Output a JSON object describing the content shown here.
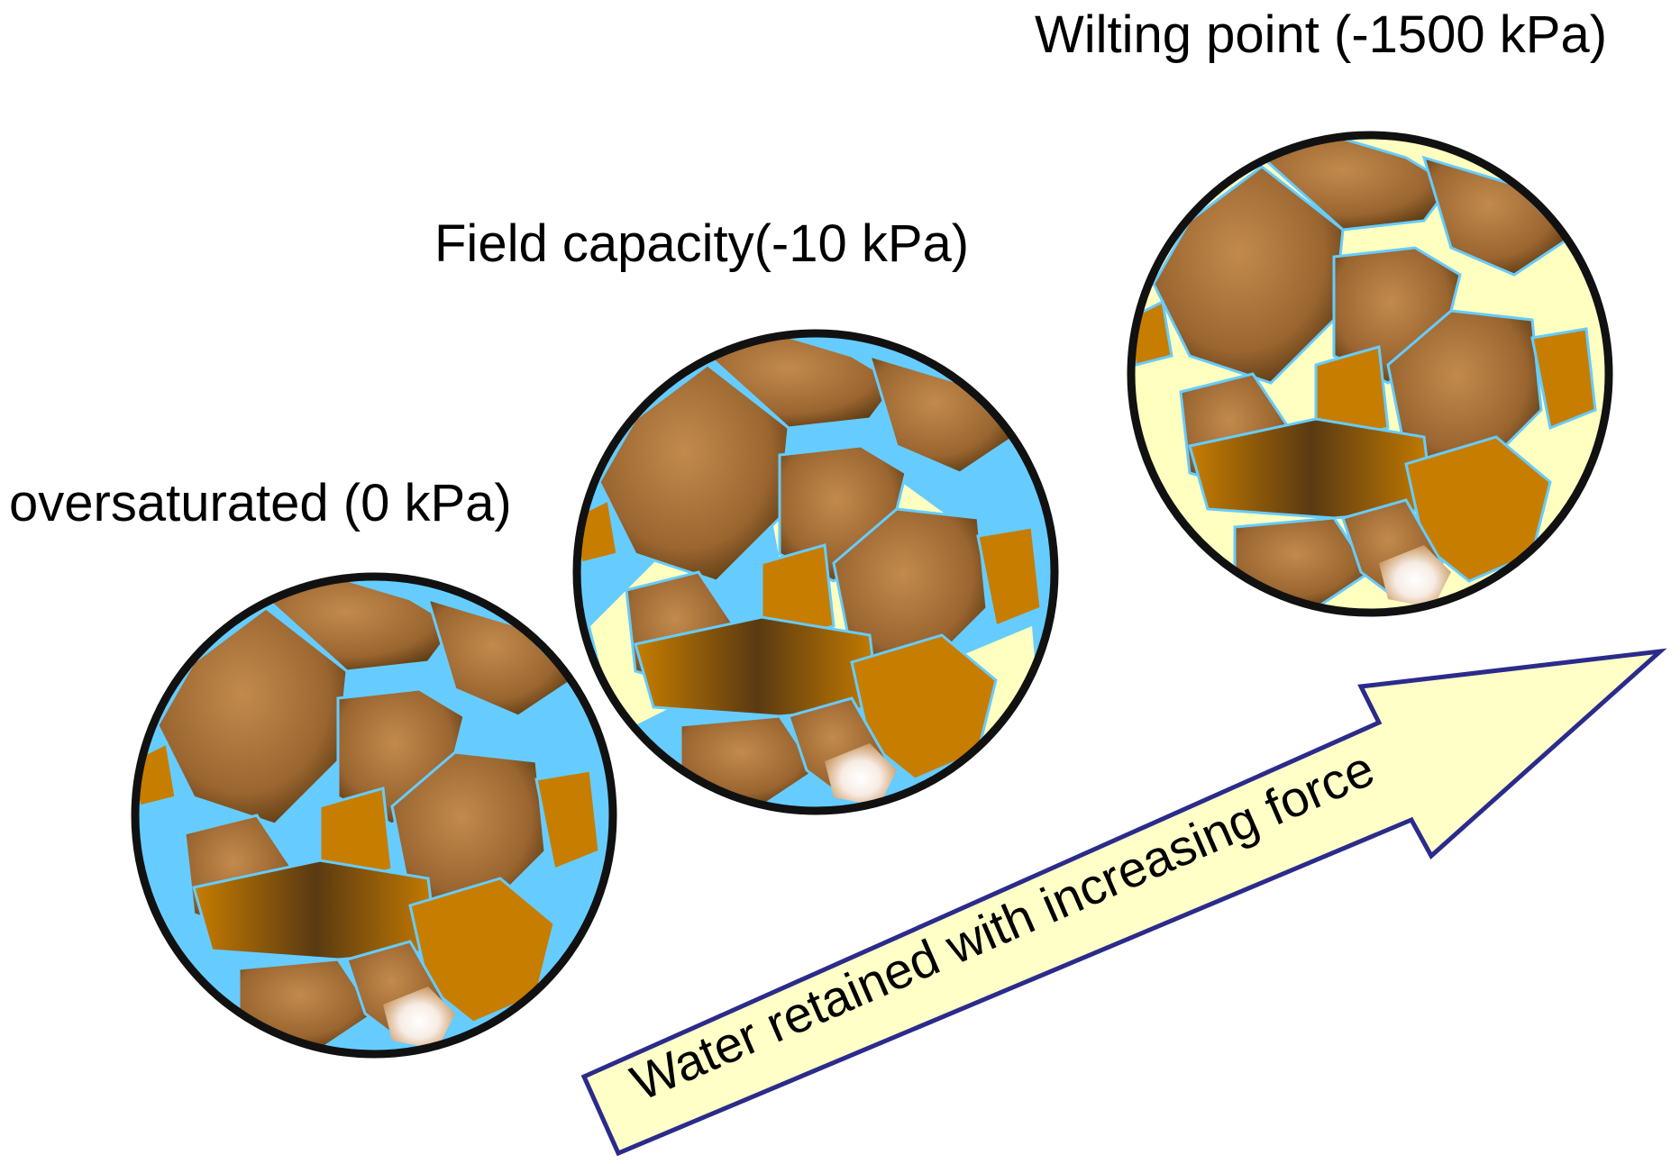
{
  "labels": {
    "oversaturated": "oversaturated (0 kPa)",
    "field_capacity": "Field capacity(-10 kPa)",
    "wilting_point": "Wilting point (-1500 kPa)",
    "arrow": "Water retained with increasing force"
  },
  "colors": {
    "water": "#66ccff",
    "air": "#ffffc0",
    "soil_light": "#c28a4c",
    "soil_dark": "#5a3a12",
    "soil_gold": "#c77d00",
    "outline": "#111111",
    "arrow_fill": "#ffffc8",
    "arrow_stroke": "#2b2b8c"
  }
}
